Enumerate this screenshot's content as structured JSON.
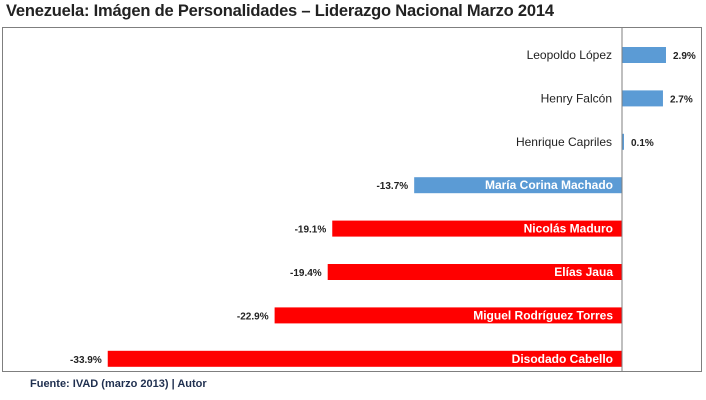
{
  "chart_data": {
    "type": "bar",
    "orientation": "horizontal",
    "title": "Venezuela: Imágen de Personalidades – Liderazgo Nacional Marzo 2014",
    "categories": [
      "Leopoldo López",
      "Henry Falcón",
      "Henrique Capriles",
      "María Corina Machado",
      "Nicolás Maduro",
      "Elías Jaua",
      "Miguel Rodríguez Torres",
      "Disodado Cabello"
    ],
    "values": [
      2.9,
      2.7,
      0.1,
      -13.7,
      -19.1,
      -19.4,
      -22.9,
      -33.9
    ],
    "value_labels": [
      "2.9%",
      "2.7%",
      "0.1%",
      "-13.7%",
      "-19.1%",
      "-19.4%",
      "-22.9%",
      "-33.9%"
    ],
    "bar_colors": [
      "#5b9bd5",
      "#5b9bd5",
      "#5b9bd5",
      "#5b9bd5",
      "#ff0000",
      "#ff0000",
      "#ff0000",
      "#ff0000"
    ],
    "xlim": [
      -33.9,
      4.7
    ],
    "grid": false,
    "legend": "none",
    "source": "Fuente: IVAD (marzo 2013) | Autor"
  }
}
